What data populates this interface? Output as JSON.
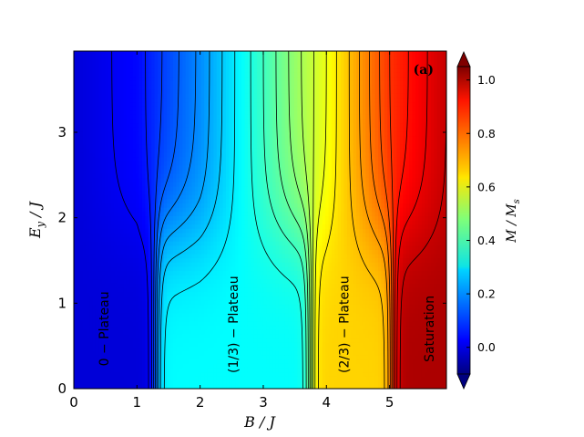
{
  "chart_data": {
    "type": "heatmap",
    "title": "",
    "xlabel": "B / J",
    "ylabel": "E_y / J",
    "xlim": [
      0,
      5.9
    ],
    "ylim": [
      0,
      3.95
    ],
    "xticks": [
      0,
      1,
      2,
      3,
      4,
      5
    ],
    "yticks": [
      0,
      1,
      2,
      3
    ],
    "colorbar": {
      "label": "M / M_s",
      "colormap": "jet",
      "range": [
        -0.1,
        1.05
      ],
      "ticks": [
        0.0,
        0.2,
        0.4,
        0.6,
        0.8,
        1.0
      ],
      "extend": "both"
    },
    "panel_label": "(a)",
    "regions": [
      {
        "text": "0 − Plateau",
        "x": 0.55,
        "y": 0.7,
        "value": 0.0
      },
      {
        "text": "(1/3) − Plateau",
        "x": 2.6,
        "y": 0.75,
        "value": 0.333
      },
      {
        "text": "(2/3) − Plateau",
        "x": 4.35,
        "y": 0.75,
        "value": 0.667
      },
      {
        "text": "Saturation",
        "x": 5.7,
        "y": 0.7,
        "value": 1.0
      }
    ],
    "zero_field_magnetization_steps": [
      {
        "B": 0.0,
        "M": 0.0
      },
      {
        "B": 1.3,
        "M": 0.0
      },
      {
        "B": 1.3,
        "M": 0.333
      },
      {
        "B": 3.75,
        "M": 0.333
      },
      {
        "B": 3.75,
        "M": 0.667
      },
      {
        "B": 5.05,
        "M": 0.667
      },
      {
        "B": 5.05,
        "M": 1.0
      },
      {
        "B": 5.9,
        "M": 1.0
      }
    ],
    "high_field_magnetization": [
      {
        "B": 0.0,
        "M": 0.0
      },
      {
        "B": 1.0,
        "M": 0.05
      },
      {
        "B": 2.0,
        "M": 0.2
      },
      {
        "B": 3.0,
        "M": 0.4
      },
      {
        "B": 4.0,
        "M": 0.6
      },
      {
        "B": 5.0,
        "M": 0.85
      },
      {
        "B": 5.9,
        "M": 0.97
      }
    ],
    "contour_levels": [
      0.03,
      0.07,
      0.11,
      0.15,
      0.19,
      0.23,
      0.27,
      0.31,
      0.36,
      0.4,
      0.44,
      0.48,
      0.52,
      0.56,
      0.6,
      0.64,
      0.69,
      0.73,
      0.77,
      0.81,
      0.85,
      0.89,
      0.93,
      0.97
    ],
    "grid": false,
    "legend": "none"
  }
}
